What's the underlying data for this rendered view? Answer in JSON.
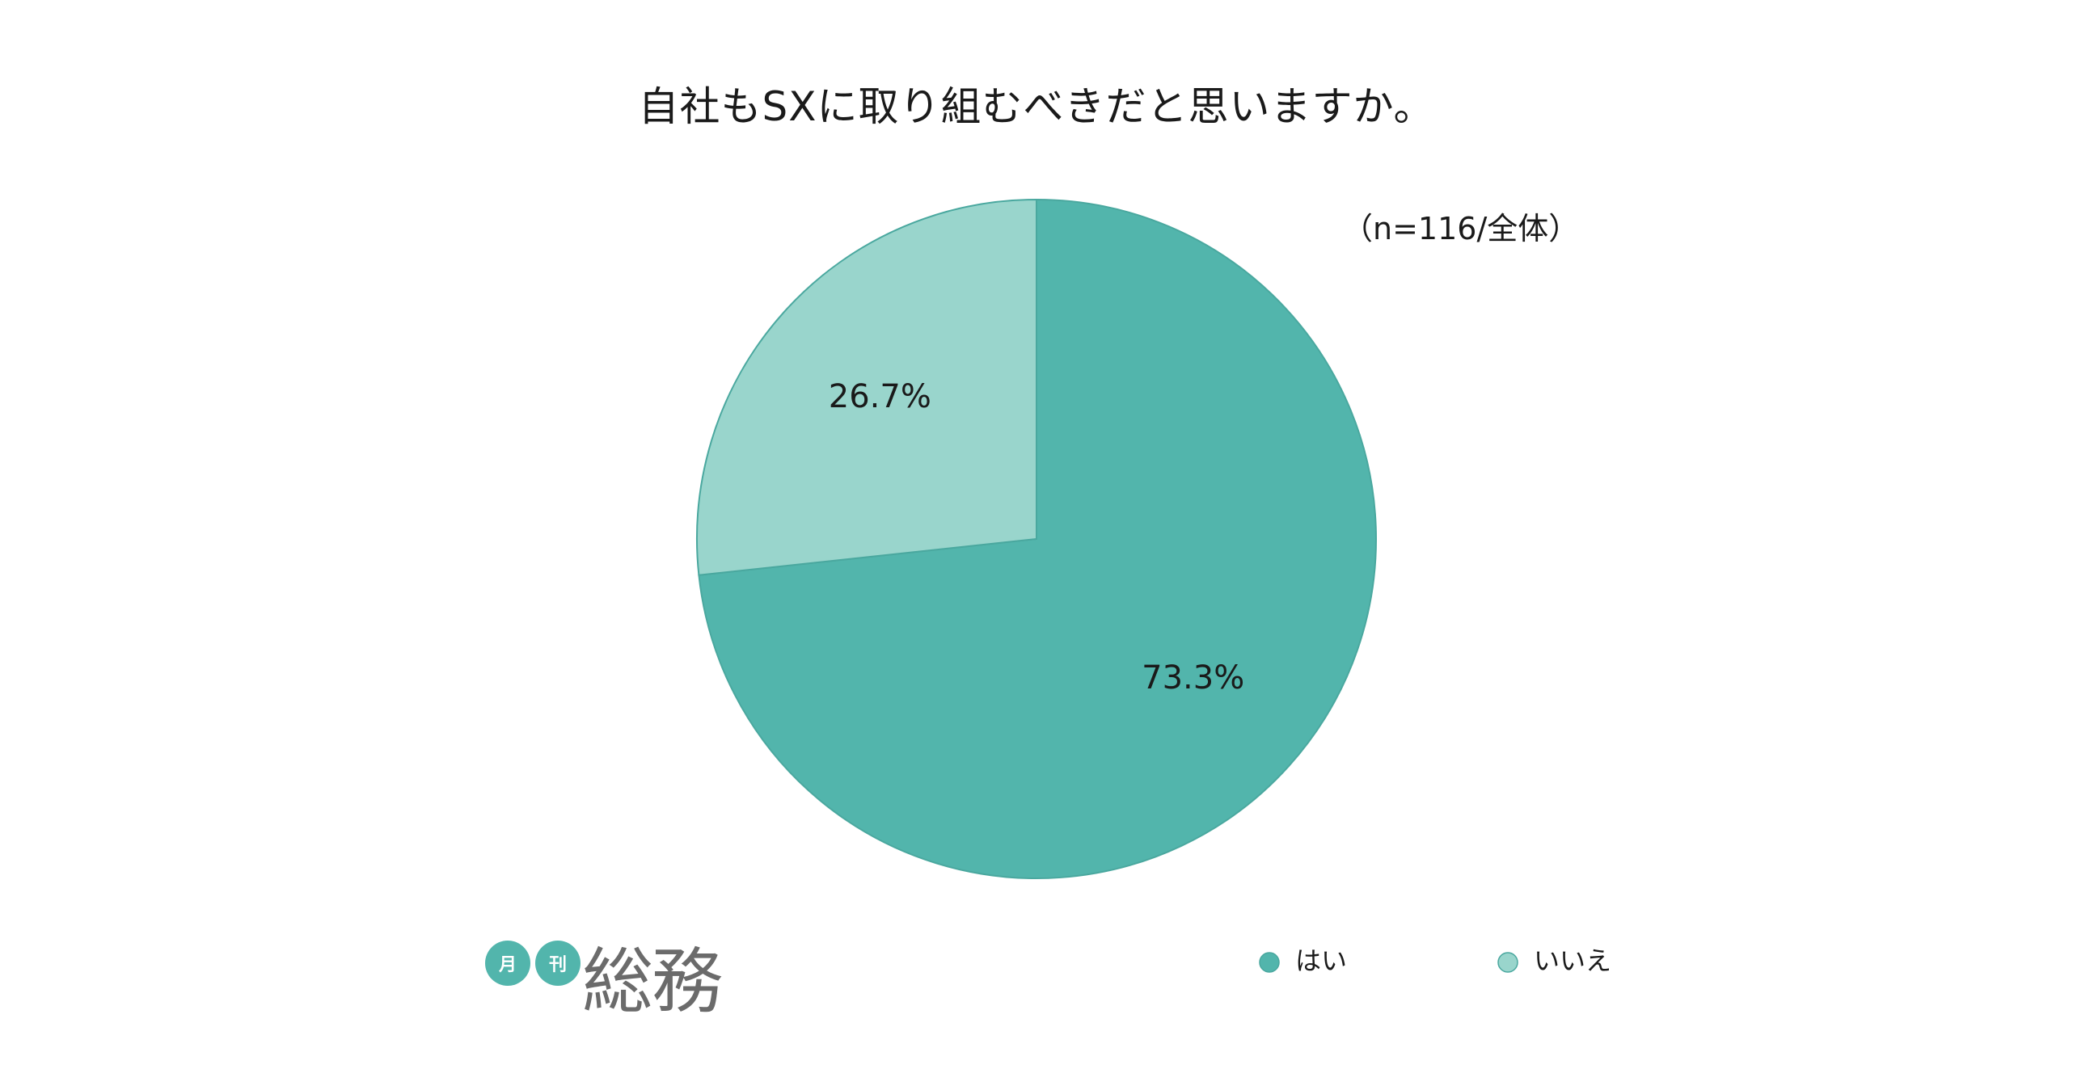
{
  "colors": {
    "yes": "#52b5ac",
    "no": "#99d5cc",
    "stroke": "#4aa89f",
    "logo_badge": "#52b5ac"
  },
  "logo": {
    "badge1": "月",
    "badge2": "刊",
    "main": "総務"
  },
  "chart_data": {
    "type": "pie",
    "title": "自社もSXに取り組むべきだと思いますか。",
    "note": "（n=116/全体）",
    "categories": [
      "はい",
      "いいえ"
    ],
    "values": [
      73.3,
      26.7
    ],
    "value_labels": [
      "73.3%",
      "26.7%"
    ],
    "legend": {
      "placement": "bottom-right",
      "entries": [
        "はい",
        "いいえ"
      ]
    }
  }
}
